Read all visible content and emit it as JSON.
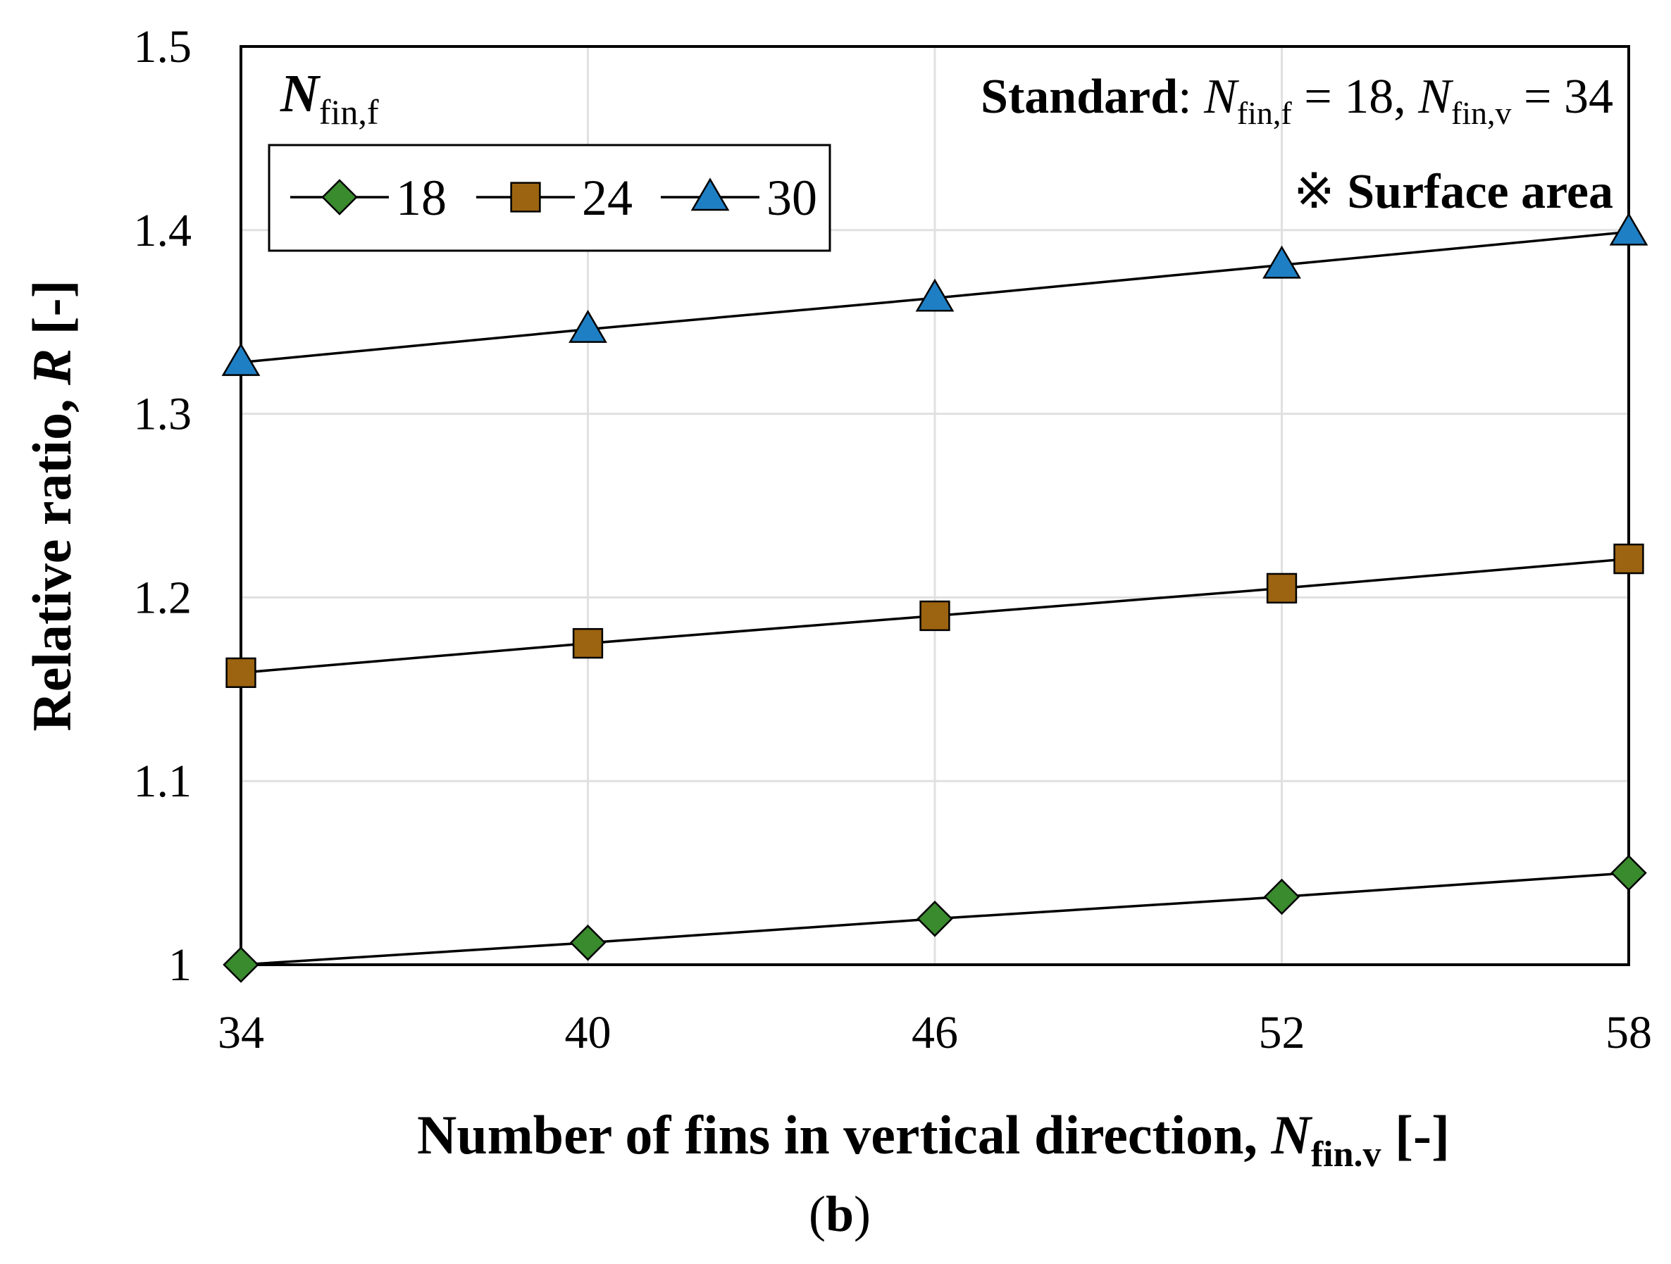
{
  "chart_data": {
    "type": "line",
    "x": [
      34,
      40,
      46,
      52,
      58
    ],
    "series": [
      {
        "name": "18",
        "values": [
          1.0,
          1.012,
          1.025,
          1.037,
          1.05
        ],
        "marker": "diamond",
        "color": "#3a8a2e"
      },
      {
        "name": "24",
        "values": [
          1.159,
          1.175,
          1.19,
          1.205,
          1.221
        ],
        "marker": "square",
        "color": "#9c6410"
      },
      {
        "name": "30",
        "values": [
          1.328,
          1.346,
          1.363,
          1.381,
          1.399
        ],
        "marker": "triangle",
        "color": "#1f7fc4"
      }
    ],
    "xlim": [
      34,
      58
    ],
    "ylim": [
      1.0,
      1.5
    ],
    "xticks": [
      "34",
      "40",
      "46",
      "52",
      "58"
    ],
    "yticks": [
      "1",
      "1.1",
      "1.2",
      "1.3",
      "1.4",
      "1.5"
    ],
    "ytick_values": [
      1.0,
      1.1,
      1.2,
      1.3,
      1.4,
      1.5
    ],
    "grid": true,
    "legend_position": "top-left",
    "legend_title_main": "N",
    "legend_title_sub": "fin,f",
    "xlabel_main": "Number of fins in vertical direction, ",
    "xlabel_italic": "N",
    "xlabel_sub": "fin.v",
    "xlabel_end": " [-]",
    "ylabel_main": "Relative ratio, ",
    "ylabel_italic": "R",
    "ylabel_end": " [-]",
    "annotation_standard_label": "Standard",
    "annotation_standard_colon": ": ",
    "annotation_n1": "N",
    "annotation_sub1": "fin,f",
    "annotation_eq1": " = 18, ",
    "annotation_n2": "N",
    "annotation_sub2": "fin,v",
    "annotation_eq2": " = 34",
    "annotation_symbol": "※",
    "annotation_surface": "Surface area",
    "panel_label_open": "(",
    "panel_label_letter": "b",
    "panel_label_close": ")"
  }
}
